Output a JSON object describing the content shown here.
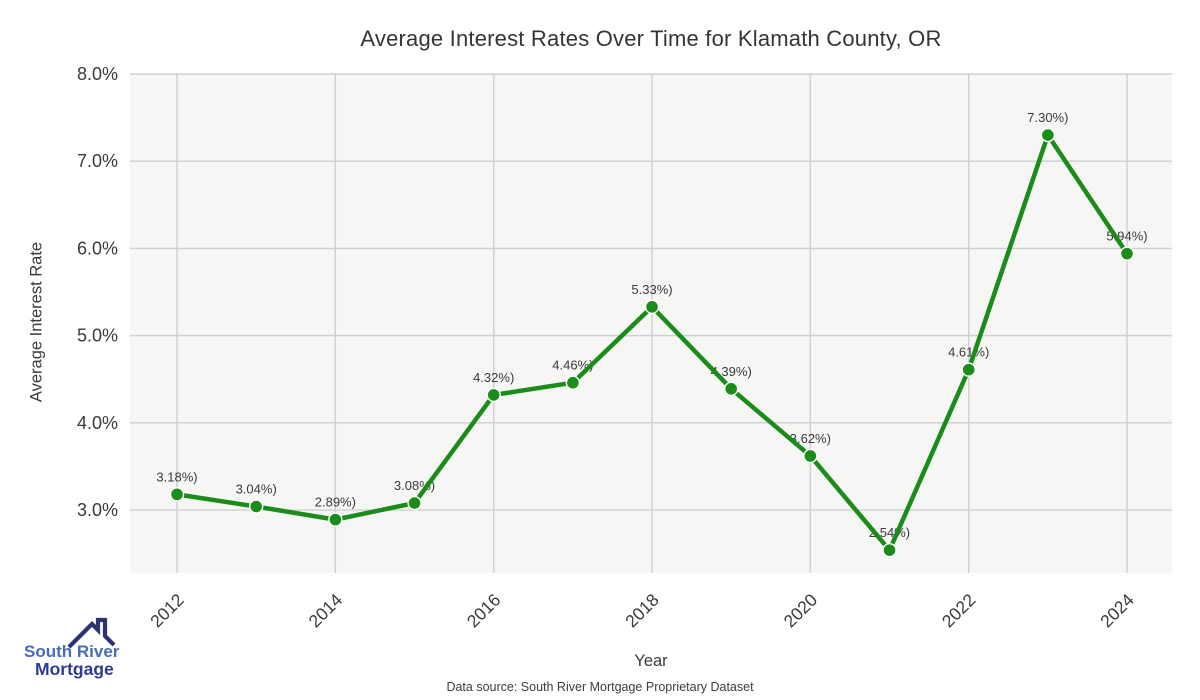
{
  "footer": {
    "source": "Data source: South River Mortgage Proprietary Dataset"
  },
  "logo": {
    "line1": "South River",
    "line2": "Mortgage",
    "roof_color": "#2c3272",
    "line1_color": "#4a6cb3",
    "line2_color": "#2d3c8f"
  },
  "chart_data": {
    "type": "line",
    "title": "Average Interest Rates Over Time for Klamath County, OR",
    "xlabel": "Year",
    "ylabel": "Average Interest Rate",
    "x": [
      2012,
      2013,
      2014,
      2015,
      2016,
      2017,
      2018,
      2019,
      2020,
      2021,
      2022,
      2023,
      2024
    ],
    "values": [
      3.18,
      3.04,
      2.89,
      3.08,
      4.32,
      4.46,
      5.33,
      4.39,
      3.62,
      2.54,
      4.61,
      7.3,
      5.94
    ],
    "point_labels": [
      "3.18%)",
      "3.04%)",
      "2.89%)",
      "3.08%)",
      "4.32%)",
      "4.46%)",
      "5.33%)",
      "4.39%)",
      "3.62%)",
      "2.54%)",
      "4.61%)",
      "7.30%)",
      "5.94%)"
    ],
    "x_ticks": [
      2012,
      2014,
      2016,
      2018,
      2020,
      2022,
      2024
    ],
    "x_tick_labels": [
      "2012",
      "2014",
      "2016",
      "2018",
      "2020",
      "2022",
      "2024"
    ],
    "y_ticks": [
      3,
      4,
      5,
      6,
      7,
      8
    ],
    "y_tick_labels": [
      "3.0%",
      "4.0%",
      "5.0%",
      "6.0%",
      "7.0%",
      "8.0%"
    ],
    "xlim": [
      2011.406,
      2024.568
    ],
    "ylim": [
      2.278,
      8.0
    ],
    "grid": true,
    "legend": "none",
    "line_color": "#1a8c1a",
    "marker_color": "#1a8c1a",
    "marker_edge_color": "#ffffff",
    "plot_bg": "#f6f6f4",
    "grid_color": "#cfcfcf",
    "tick_label_color": "#3a3a3a",
    "point_label_color": "#3a3a3a"
  }
}
